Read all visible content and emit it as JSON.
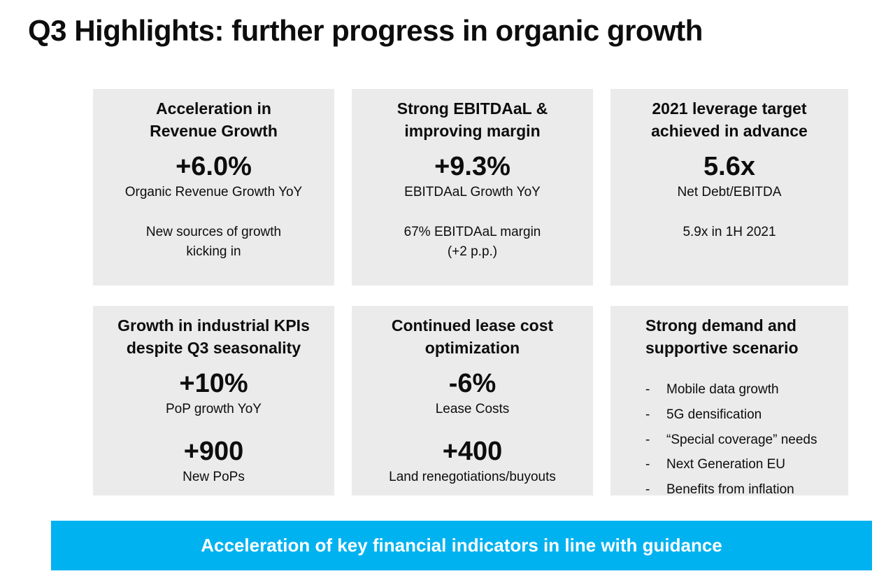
{
  "title": "Q3 Highlights: further progress in organic growth",
  "colors": {
    "card_bg": "#ebebeb",
    "banner_bg": "#00b2f0",
    "banner_text": "#ffffff",
    "text": "#0d0d0d"
  },
  "bullet_marker": "-",
  "cards": [
    {
      "heading": "Acceleration in\nRevenue Growth",
      "stat": "+6.0%",
      "stat_label": "Organic Revenue Growth YoY",
      "note": "New sources of growth\nkicking in"
    },
    {
      "heading": "Strong EBITDAaL &\nimproving margin",
      "stat": "+9.3%",
      "stat_label": "EBITDAaL Growth YoY",
      "note": "67% EBITDAaL margin\n(+2 p.p.)"
    },
    {
      "heading": "2021 leverage target\nachieved in advance",
      "stat": "5.6x",
      "stat_label": "Net Debt/EBITDA",
      "note": "5.9x in 1H 2021"
    },
    {
      "heading": "Growth in industrial KPIs\ndespite Q3 seasonality",
      "stat": "+10%",
      "stat_label": "PoP growth YoY",
      "stat2": "+900",
      "stat2_label": "New PoPs"
    },
    {
      "heading": "Continued lease cost\noptimization",
      "stat": "-6%",
      "stat_label": "Lease Costs",
      "stat2": "+400",
      "stat2_label": "Land renegotiations/buyouts"
    },
    {
      "heading": "Strong demand and\nsupportive scenario",
      "bullets": [
        "Mobile data growth",
        "5G densification",
        "“Special coverage” needs",
        "Next Generation EU",
        "Benefits from inflation"
      ]
    }
  ],
  "banner": "Acceleration of key financial indicators in line with guidance"
}
